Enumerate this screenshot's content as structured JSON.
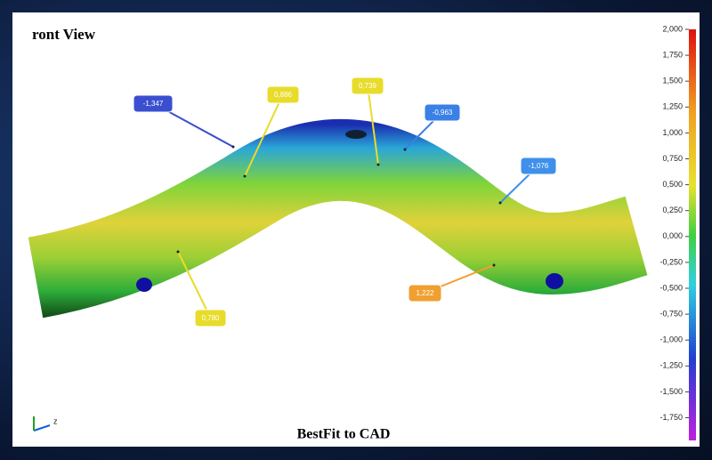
{
  "view_title": "ront View",
  "caption": "BestFit to CAD",
  "axis_label": "z",
  "callouts": [
    {
      "label": "-1,347"
    },
    {
      "label": "0,886"
    },
    {
      "label": "0,739"
    },
    {
      "label": "-0,963"
    },
    {
      "label": "-1,076"
    },
    {
      "label": "1,222"
    },
    {
      "label": "0,780"
    }
  ],
  "scale": {
    "ticks": [
      "2,000",
      "1,750",
      "1,500",
      "1,250",
      "1,000",
      "0,750",
      "0,500",
      "0,250",
      "0,000",
      "-0,250",
      "-0,500",
      "-0,750",
      "-1,000",
      "-1,250",
      "-1,500",
      "-1,750"
    ]
  }
}
